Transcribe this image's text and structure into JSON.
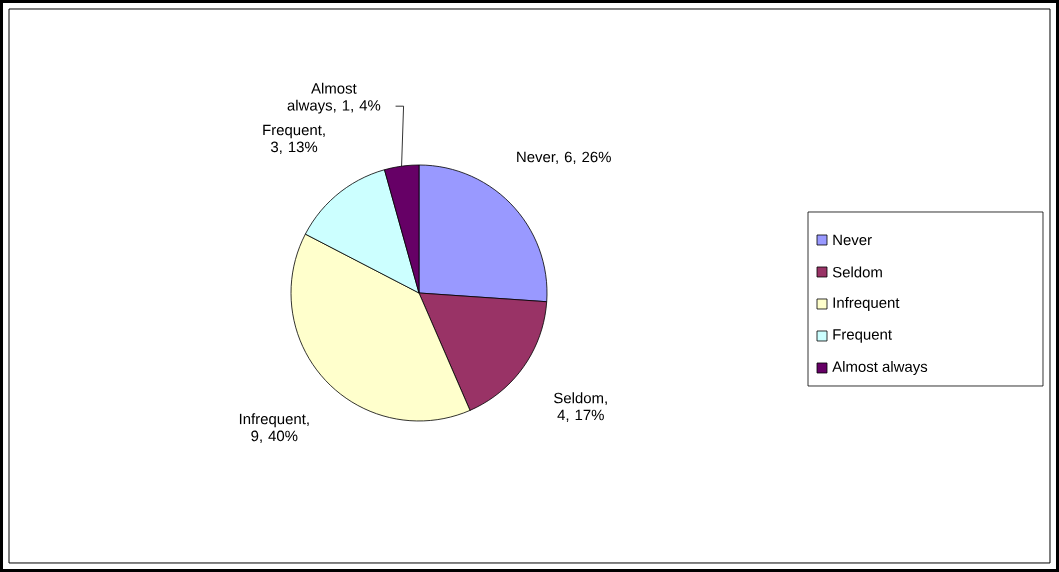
{
  "chart_data": {
    "type": "pie",
    "categories": [
      "Never",
      "Seldom",
      "Infrequent",
      "Frequent",
      "Almost always"
    ],
    "values": [
      6,
      4,
      9,
      3,
      1
    ],
    "colors": [
      "#9999ff",
      "#993366",
      "#ffffcc",
      "#ccffff",
      "#660066"
    ],
    "value_labels": [
      "Never, 6, 26%",
      "Seldom, 4, 17%",
      "Infrequent, 9, 40%",
      "Frequent, 3, 13%",
      "Almost always, 1, 4%"
    ],
    "legend": "right"
  }
}
